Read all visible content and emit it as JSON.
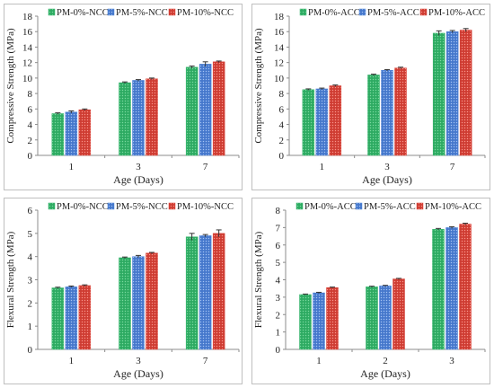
{
  "colors": {
    "green": "#34b36a",
    "blue": "#4f81d4",
    "red": "#d8443a",
    "axis": "#8c8c8c",
    "frame": "#bfbfbf"
  },
  "chart_data": [
    {
      "type": "bar",
      "xlabel": "Age (Days)",
      "ylabel": "Compressive Strength (MPa)",
      "ylim": [
        0,
        18
      ],
      "yticks": [
        0,
        2,
        4,
        6,
        8,
        10,
        12,
        14,
        16,
        18
      ],
      "categories": [
        "1",
        "3",
        "7"
      ],
      "legend_position": "top",
      "series": [
        {
          "name": "PM-0%-NCC",
          "color": "green",
          "values": [
            5.4,
            9.4,
            11.4
          ],
          "errors": [
            0.1,
            0.1,
            0.15
          ]
        },
        {
          "name": "PM-5%-NCC",
          "color": "blue",
          "values": [
            5.6,
            9.7,
            11.8
          ],
          "errors": [
            0.15,
            0.1,
            0.3
          ]
        },
        {
          "name": "PM-10%-NCC",
          "color": "red",
          "values": [
            5.9,
            9.9,
            12.1
          ],
          "errors": [
            0.1,
            0.1,
            0.1
          ]
        }
      ]
    },
    {
      "type": "bar",
      "xlabel": "Age (Days)",
      "ylabel": "Compressive Strength (MPa)",
      "ylim": [
        0,
        18
      ],
      "yticks": [
        0,
        2,
        4,
        6,
        8,
        10,
        12,
        14,
        16,
        18
      ],
      "categories": [
        "1",
        "3",
        "7"
      ],
      "legend_position": "top",
      "series": [
        {
          "name": "PM-0%-ACC",
          "color": "green",
          "values": [
            8.5,
            10.4,
            15.8
          ],
          "errors": [
            0.1,
            0.1,
            0.3
          ]
        },
        {
          "name": "PM-5%-ACC",
          "color": "blue",
          "values": [
            8.6,
            11.0,
            16.0
          ],
          "errors": [
            0.1,
            0.1,
            0.15
          ]
        },
        {
          "name": "PM-10%-ACC",
          "color": "red",
          "values": [
            9.0,
            11.3,
            16.2
          ],
          "errors": [
            0.1,
            0.1,
            0.2
          ]
        }
      ]
    },
    {
      "type": "bar",
      "xlabel": "Age (Days)",
      "ylabel": "Flexural Strength (MPa)",
      "ylim": [
        0,
        6
      ],
      "yticks": [
        0,
        1,
        2,
        3,
        4,
        5,
        6
      ],
      "categories": [
        "1",
        "3",
        "7"
      ],
      "legend_position": "top",
      "series": [
        {
          "name": "PM-0%-NCC",
          "color": "green",
          "values": [
            2.65,
            3.95,
            4.85
          ],
          "errors": [
            0.03,
            0.03,
            0.15
          ]
        },
        {
          "name": "PM-5%-NCC",
          "color": "blue",
          "values": [
            2.7,
            4.0,
            4.9
          ],
          "errors": [
            0.03,
            0.05,
            0.05
          ]
        },
        {
          "name": "PM-10%-NCC",
          "color": "red",
          "values": [
            2.75,
            4.15,
            5.0
          ],
          "errors": [
            0.03,
            0.03,
            0.15
          ]
        }
      ]
    },
    {
      "type": "bar",
      "xlabel": "Age (Days)",
      "ylabel": "Flexural Strength (MPa)",
      "ylim": [
        0,
        8
      ],
      "yticks": [
        0,
        1,
        2,
        3,
        4,
        5,
        6,
        7,
        8
      ],
      "categories": [
        "1",
        "2",
        "3"
      ],
      "legend_position": "top",
      "series": [
        {
          "name": "PM-0%-ACC",
          "color": "green",
          "values": [
            3.15,
            3.6,
            6.9
          ],
          "errors": [
            0.03,
            0.03,
            0.05
          ]
        },
        {
          "name": "PM-5%-ACC",
          "color": "blue",
          "values": [
            3.25,
            3.65,
            7.0
          ],
          "errors": [
            0.03,
            0.03,
            0.05
          ]
        },
        {
          "name": "PM-10%-ACC",
          "color": "red",
          "values": [
            3.55,
            4.05,
            7.2
          ],
          "errors": [
            0.03,
            0.03,
            0.05
          ]
        }
      ]
    }
  ]
}
